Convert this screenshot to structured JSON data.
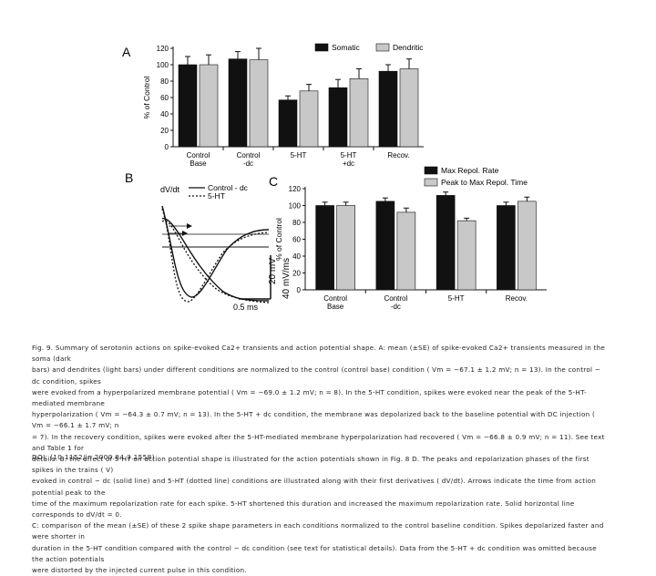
{
  "figure": {
    "panel_a_letter": "A",
    "panel_b_letter": "B",
    "panel_c_letter": "C",
    "panel_b": {
      "y_label": "dV/dt",
      "legend": [
        "Control - dc",
        "5-HT"
      ],
      "scale_labels": [
        "20 mV",
        "40 mV/ms",
        "0.5 ms"
      ]
    }
  },
  "chart_data": [
    {
      "type": "bar",
      "panel": "A",
      "categories": [
        "Control Base",
        "Control -dc",
        "5-HT",
        "5-HT +dc",
        "Recov."
      ],
      "category_lines": [
        [
          "Control",
          "Base"
        ],
        [
          "Control",
          "-dc"
        ],
        [
          "5-HT",
          ""
        ],
        [
          "5-HT",
          "+dc"
        ],
        [
          "Recov.",
          ""
        ]
      ],
      "series": [
        {
          "name": "Somatic",
          "color": "#111111",
          "values": [
            100,
            107,
            57,
            72,
            92
          ],
          "errors": [
            10,
            9,
            5,
            10,
            8
          ]
        },
        {
          "name": "Dendritic",
          "color": "#c8c8c8",
          "values": [
            100,
            106,
            68,
            83,
            95
          ],
          "errors": [
            12,
            14,
            8,
            12,
            12
          ]
        }
      ],
      "xlabel": "",
      "ylabel": "% of Control",
      "ylim": [
        0,
        120
      ],
      "yticks": [
        0,
        20,
        40,
        60,
        80,
        100,
        120
      ],
      "legend_position": "top-right"
    },
    {
      "type": "bar",
      "panel": "C",
      "categories": [
        "Control Base",
        "Control -dc",
        "5-HT",
        "Recov."
      ],
      "category_lines": [
        [
          "Control",
          "Base"
        ],
        [
          "Control",
          "-dc"
        ],
        [
          "5-HT",
          ""
        ],
        [
          "Recov.",
          ""
        ]
      ],
      "series": [
        {
          "name": "Max Repol. Rate",
          "color": "#111111",
          "values": [
            100,
            105,
            112,
            100
          ],
          "errors": [
            4,
            4,
            4,
            4
          ]
        },
        {
          "name": "Peak to Max Repol. Time",
          "color": "#c8c8c8",
          "values": [
            100,
            92,
            82,
            105
          ],
          "errors": [
            4,
            5,
            3,
            5
          ]
        }
      ],
      "xlabel": "",
      "ylabel": "% of Control",
      "ylim": [
        0,
        120
      ],
      "yticks": [
        0,
        20,
        40,
        60,
        80,
        100,
        120
      ],
      "legend_position": "top"
    }
  ],
  "caption": {
    "lines": [
      "Fig. 9. Summary of serotonin actions on spike-evoked Ca2+ transients and action potential shape.  A: mean (±SE) of spike-evoked Ca2+ transients measured in the soma (dark",
      "bars) and dendrites (light bars) under different conditions are normalized to the control (control base) condition ( Vm = −67.1 ± 1.2 mV; n = 13). In the control − dc condition, spikes",
      "were evoked from a hyperpolarized membrane potential ( Vm = −69.0 ± 1.2 mV; n = 8). In the 5-HT condition, spikes were evoked near the peak of the 5-HT-mediated membrane",
      "hyperpolarization ( Vm = −64.3 ± 0.7 mV; n = 13). In the 5-HT + dc condition, the membrane was depolarized back to the baseline potential with DC injection ( Vm = −66.1 ± 1.7 mV; n",
      "= 7). In the recovery condition, spikes were evoked after the 5-HT-mediated membrane hyperpolarization had recovered ( Vm = −66.8 ± 0.9 mV; n = 11). See text and Table 1 for",
      "details. B: the effect of 5-HT on action potential shape is illustrated for the action potentials shown in Fig. 8  D. The peaks and repolarization phases of the first spikes in the trains ( V)",
      "evoked in control − dc (solid line) and 5-HT (dotted line) conditions are illustrated along with their first derivatives ( dV/dt). Arrows indicate the time from action potential peak to the",
      "time of the maximum repolarization rate for each spike. 5-HT shortened this duration and increased the maximum repolarization rate. Solid horizontal line corresponds to dV/dt = 0.",
      "C: comparison of the mean (±SE) of these 2 spike shape parameters in each conditions normalized to the control baseline condition. Spikes depolarized faster and were shorter in",
      "duration in the 5-HT condition compared with the control − dc condition (see text for statistical details). Data from the 5-HT + dc condition was omitted because the action potentials",
      "were distorted by the injected current pulse in this condition."
    ]
  },
  "doi": "DOI: (10.1152/jn.2000.84.3.1558)"
}
